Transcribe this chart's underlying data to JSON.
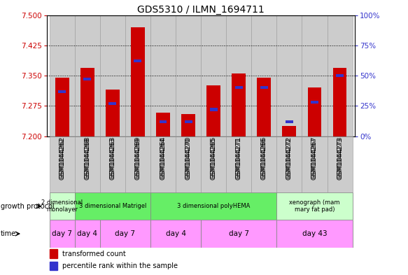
{
  "title": "GDS5310 / ILMN_1694711",
  "samples": [
    "GSM1044262",
    "GSM1044268",
    "GSM1044263",
    "GSM1044269",
    "GSM1044264",
    "GSM1044270",
    "GSM1044265",
    "GSM1044271",
    "GSM1044266",
    "GSM1044272",
    "GSM1044267",
    "GSM1044273"
  ],
  "transformed_counts": [
    7.345,
    7.37,
    7.315,
    7.47,
    7.258,
    7.255,
    7.325,
    7.355,
    7.345,
    7.225,
    7.32,
    7.37
  ],
  "percentile_ranks": [
    37,
    47,
    27,
    62,
    12,
    12,
    22,
    40,
    40,
    12,
    28,
    50
  ],
  "ylim_left": [
    7.2,
    7.5
  ],
  "ylim_right": [
    0,
    100
  ],
  "yticks_left": [
    7.2,
    7.275,
    7.35,
    7.425,
    7.5
  ],
  "yticks_right": [
    0,
    25,
    50,
    75,
    100
  ],
  "bar_color": "#cc0000",
  "percentile_color": "#3333cc",
  "growth_protocol_groups": [
    {
      "label": "2 dimensional\nmonolayer",
      "start": 0,
      "end": 1,
      "color": "#ccffcc"
    },
    {
      "label": "3 dimensional Matrigel",
      "start": 1,
      "end": 4,
      "color": "#66ee66"
    },
    {
      "label": "3 dimensional polyHEMA",
      "start": 4,
      "end": 9,
      "color": "#66ee66"
    },
    {
      "label": "xenograph (mam\nmary fat pad)",
      "start": 9,
      "end": 12,
      "color": "#ccffcc"
    }
  ],
  "time_groups": [
    {
      "label": "day 7",
      "start": 0,
      "end": 1
    },
    {
      "label": "day 4",
      "start": 1,
      "end": 2
    },
    {
      "label": "day 7",
      "start": 2,
      "end": 4
    },
    {
      "label": "day 4",
      "start": 4,
      "end": 6
    },
    {
      "label": "day 7",
      "start": 6,
      "end": 9
    },
    {
      "label": "day 43",
      "start": 9,
      "end": 12
    }
  ],
  "time_color": "#ff99ff",
  "left_axis_color": "#cc0000",
  "right_axis_color": "#3333cc",
  "bar_width": 0.55,
  "ybase": 7.2
}
